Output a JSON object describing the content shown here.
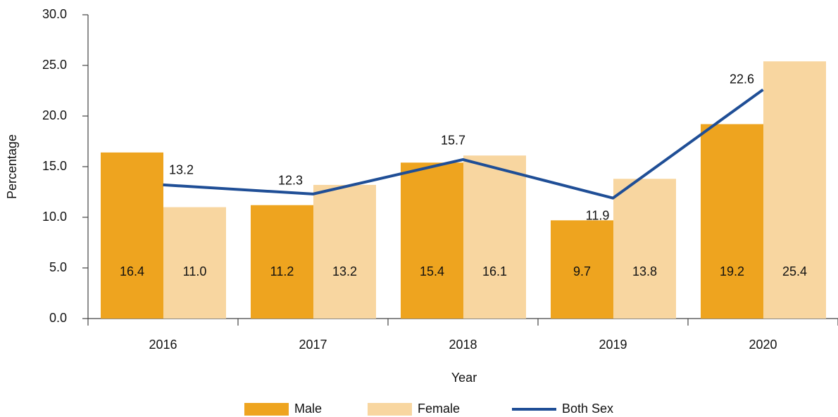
{
  "chart_data": {
    "type": "bar-line",
    "x_label": "Year",
    "y_label": "Percentage",
    "categories": [
      "2016",
      "2017",
      "2018",
      "2019",
      "2020"
    ],
    "series": [
      {
        "name": "Male",
        "type": "bar",
        "color": "#eea41f",
        "values": [
          16.4,
          11.2,
          15.4,
          9.7,
          19.2
        ],
        "value_labels": [
          "16.4",
          "11.2",
          "15.4",
          "9.7",
          "19.2"
        ]
      },
      {
        "name": "Female",
        "type": "bar",
        "color": "#f8d6a0",
        "values": [
          11.0,
          13.2,
          16.1,
          13.8,
          25.4
        ],
        "value_labels": [
          "11.0",
          "13.2",
          "16.1",
          "13.8",
          "25.4"
        ]
      },
      {
        "name": "Both Sex",
        "type": "line",
        "color": "#1f4e96",
        "values": [
          13.2,
          12.3,
          15.7,
          11.9,
          22.6
        ],
        "value_labels": [
          "13.2",
          "12.3",
          "15.7",
          "11.9",
          "22.6"
        ]
      }
    ],
    "ylim": [
      0,
      30
    ],
    "yticks": [
      {
        "value": 0,
        "label": "0.0"
      },
      {
        "value": 5,
        "label": "5.0"
      },
      {
        "value": 10,
        "label": "10.0"
      },
      {
        "value": 15,
        "label": "15.0"
      },
      {
        "value": 20,
        "label": "20.0"
      },
      {
        "value": 25,
        "label": "25.0"
      },
      {
        "value": 30,
        "label": "30.0"
      }
    ],
    "grid": false,
    "legend": "bottom"
  }
}
